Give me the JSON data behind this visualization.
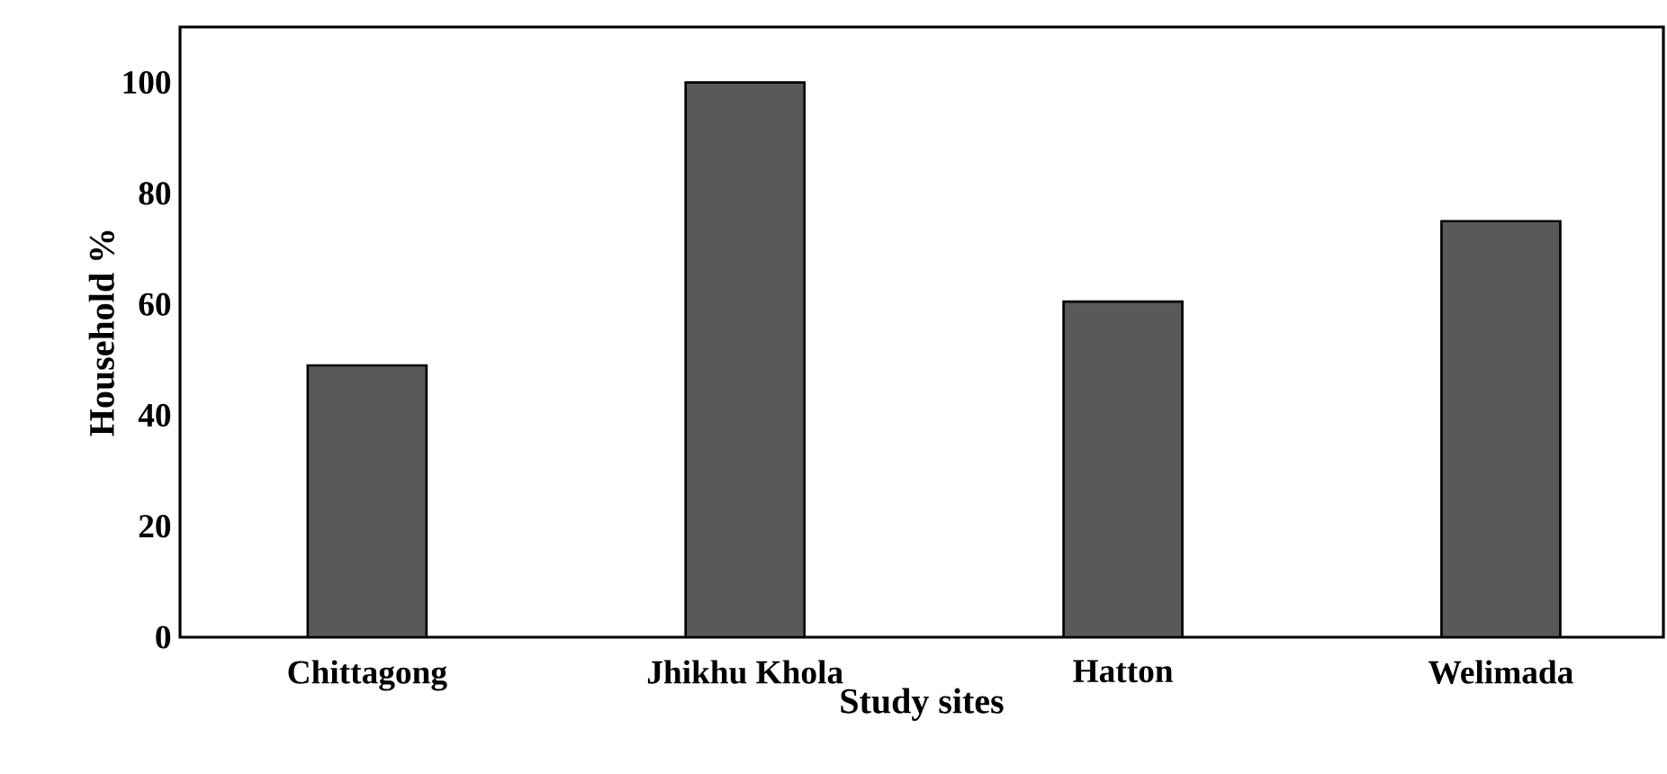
{
  "chart_data": {
    "type": "bar",
    "xlabel": "Study sites",
    "ylabel": "Household %",
    "categories": [
      "Chittagong",
      "Jhikhu Khola",
      "Hatton",
      "Welimada"
    ],
    "values": [
      49,
      100,
      60.5,
      75
    ],
    "color": "#595959",
    "ylim": [
      0,
      110
    ],
    "yticks": [
      0,
      20,
      40,
      60,
      80,
      100
    ],
    "grid": false
  }
}
